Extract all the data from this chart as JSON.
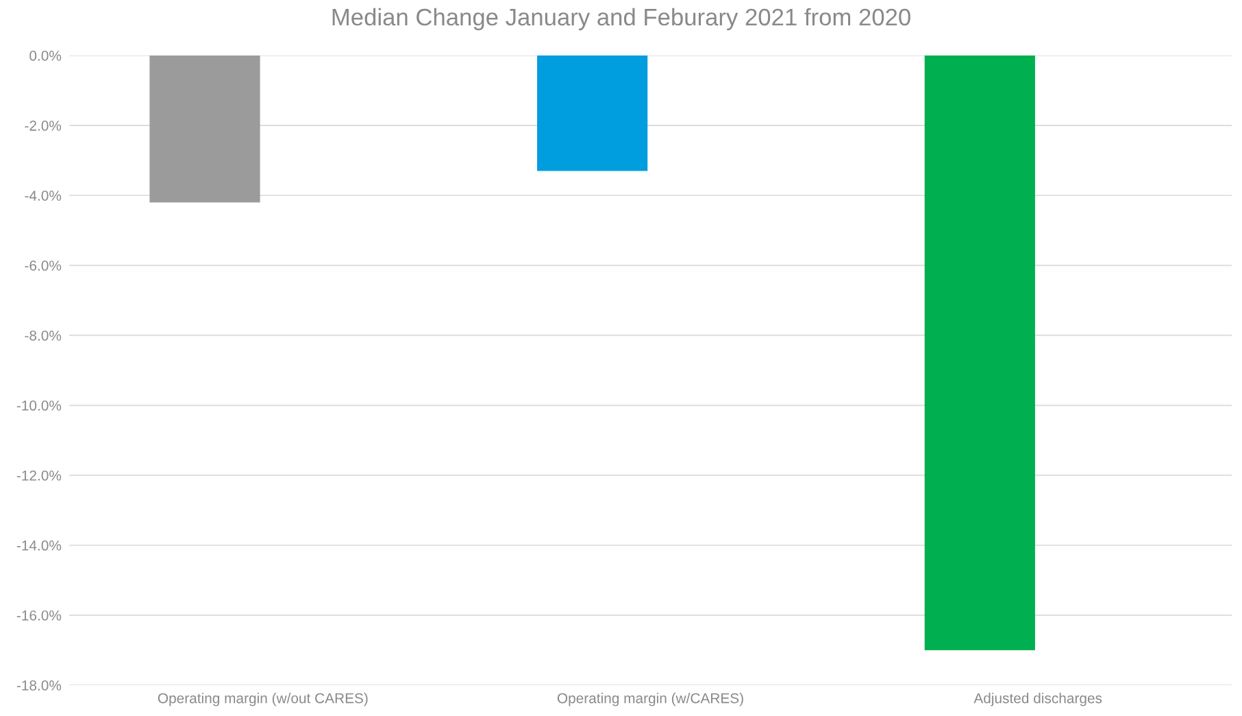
{
  "chart_data": {
    "type": "bar",
    "title": "Median Change January and Feburary 2021 from 2020",
    "categories": [
      "Operating margin (w/out CARES)",
      "Operating margin (w/CARES)",
      "Adjusted discharges"
    ],
    "values": [
      -4.2,
      -3.3,
      -17.0
    ],
    "colors": [
      "#9b9b9b",
      "#009ddf",
      "#00b050"
    ],
    "ylim": [
      -18,
      0
    ],
    "yticks": [
      {
        "value": 0,
        "label": "0.0%"
      },
      {
        "value": -2,
        "label": "-2.0%"
      },
      {
        "value": -4,
        "label": "-4.0%"
      },
      {
        "value": -6,
        "label": "-6.0%"
      },
      {
        "value": -8,
        "label": "-8.0%"
      },
      {
        "value": -10,
        "label": "-10.0%"
      },
      {
        "value": -12,
        "label": "-12.0%"
      },
      {
        "value": -14,
        "label": "-14.0%"
      },
      {
        "value": -16,
        "label": "-16.0%"
      },
      {
        "value": -18,
        "label": "-18.0%"
      }
    ],
    "grid": "y"
  }
}
